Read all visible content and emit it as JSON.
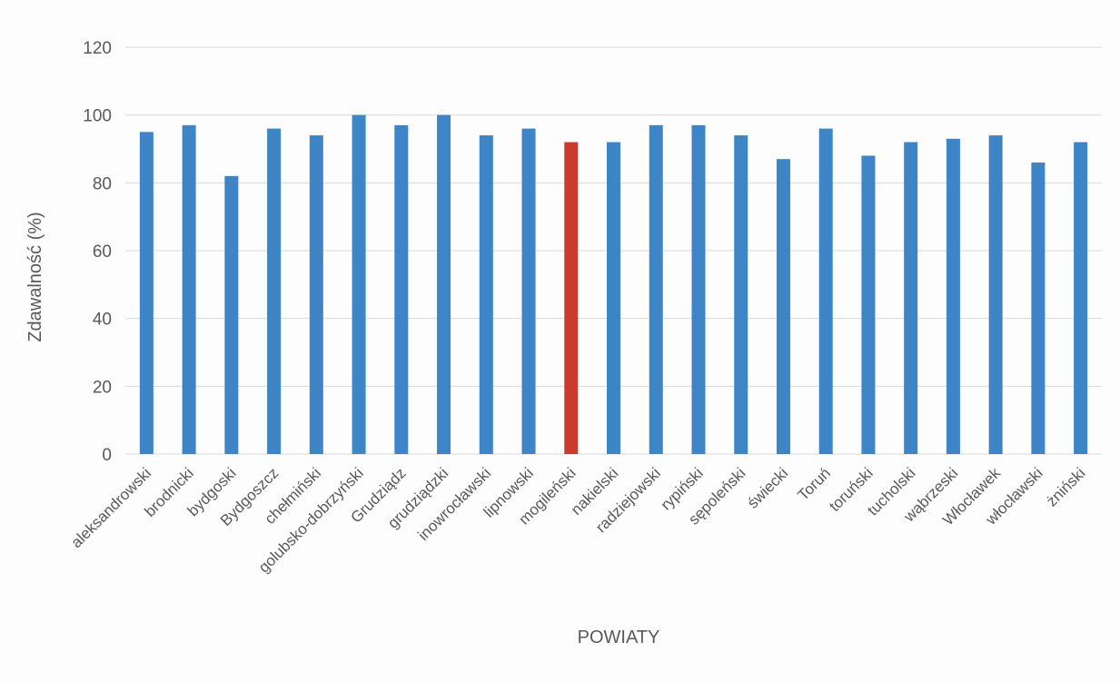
{
  "chart_data": {
    "type": "bar",
    "title": "",
    "xlabel": "POWIATY",
    "ylabel": "Zdawalność (%)",
    "ylim": [
      0,
      120
    ],
    "yticks": [
      0,
      20,
      40,
      60,
      80,
      100,
      120
    ],
    "grid": true,
    "legend": "none",
    "categories": [
      "aleksandrowski",
      "brodnicki",
      "bydgoski",
      "Bydgoszcz",
      "chełmiński",
      "golubsko-dobrzyński",
      "Grudziądz",
      "grudziądzki",
      "inowrocławski",
      "lipnowski",
      "mogileński",
      "nakielski",
      "radziejowski",
      "rypiński",
      "sępoleński",
      "świecki",
      "Toruń",
      "toruński",
      "tucholski",
      "wąbrzeski",
      "Włocławek",
      "włocławski",
      "żniński"
    ],
    "values": [
      95,
      97,
      82,
      96,
      94,
      100,
      97,
      100,
      94,
      96,
      92,
      92,
      97,
      97,
      94,
      87,
      96,
      88,
      92,
      93,
      94,
      86,
      92
    ],
    "bar_color": "#3d85c6",
    "highlight_color": "#cc3b2b",
    "highlight_category": "mogileński"
  }
}
